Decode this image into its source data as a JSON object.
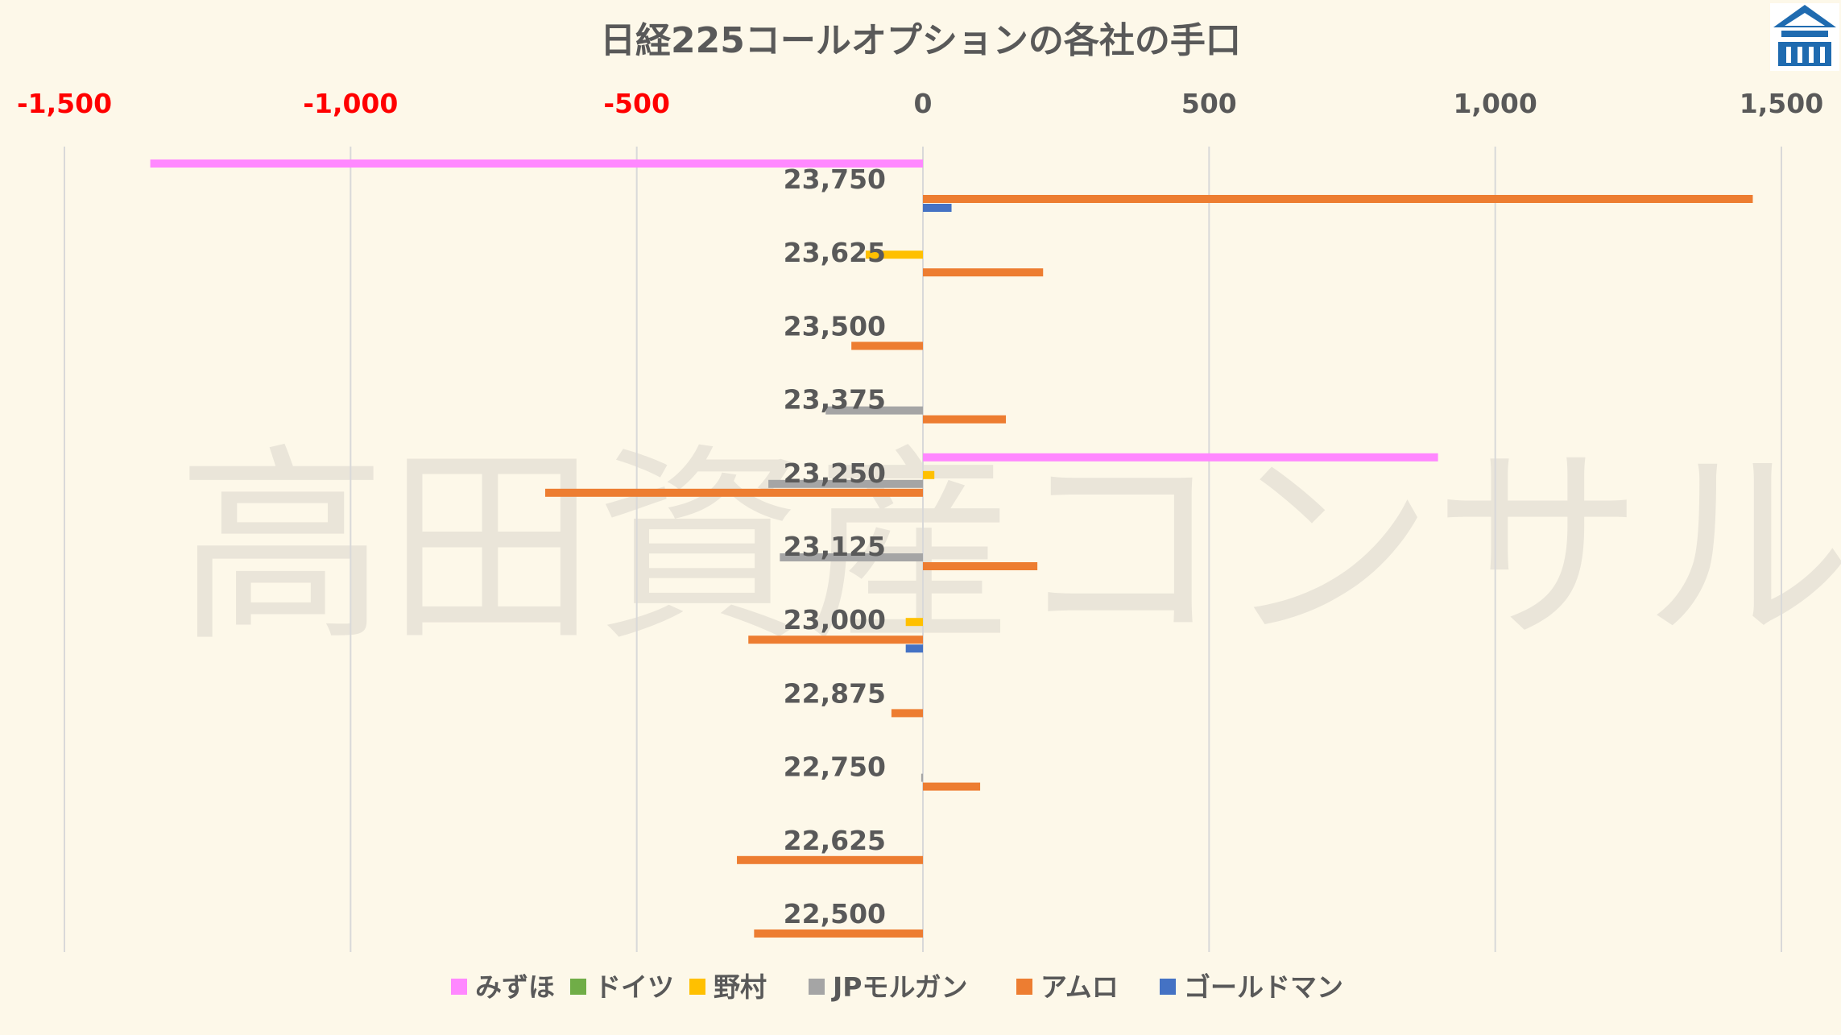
{
  "watermark": "高田資産コンサル",
  "logo": {
    "name": "logo-icon",
    "colors": [
      "#1f6bb0",
      "#ffffff"
    ]
  },
  "colors": {
    "background": "#fdf8e9",
    "gridline": "#d9d9d9",
    "negative_tick": "#ff0000",
    "positive_tick": "#595959",
    "text": "#595959"
  },
  "chart_data": {
    "type": "bar",
    "orientation": "horizontal",
    "title": "日経225コールオプションの各社の手口",
    "xlabel": "",
    "ylabel": "",
    "xlim": [
      -1500,
      1500
    ],
    "x_ticks": [
      -1500,
      -1000,
      -500,
      0,
      500,
      1000,
      1500
    ],
    "x_tick_labels": [
      "-1,500",
      "-1,000",
      "-500",
      "0",
      "500",
      "1,000",
      "1,500"
    ],
    "axis_position": "top",
    "grid": true,
    "legend_position": "bottom",
    "categories": [
      "23,750",
      "23,625",
      "23,500",
      "23,375",
      "23,250",
      "23,125",
      "23,000",
      "22,875",
      "22,750",
      "22,625",
      "22,500"
    ],
    "series": [
      {
        "name": "みずほ",
        "color": "#ff88ff",
        "values": [
          -1350,
          0,
          0,
          0,
          900,
          0,
          0,
          0,
          0,
          0,
          0
        ]
      },
      {
        "name": "ドイツ",
        "color": "#70ad47",
        "values": [
          0,
          0,
          0,
          0,
          0,
          0,
          0,
          0,
          0,
          0,
          0
        ]
      },
      {
        "name": "野村",
        "color": "#ffc000",
        "values": [
          0,
          -100,
          0,
          0,
          20,
          0,
          -30,
          0,
          0,
          0,
          0
        ]
      },
      {
        "name": "JPモルガン",
        "color": "#a5a5a5",
        "values": [
          0,
          0,
          0,
          -170,
          -270,
          -250,
          0,
          0,
          -3,
          0,
          0
        ]
      },
      {
        "name": "アムロ",
        "color": "#ed7d31",
        "values": [
          1450,
          210,
          -125,
          145,
          -660,
          200,
          -305,
          -55,
          100,
          -325,
          -295
        ]
      },
      {
        "name": "ゴールドマン",
        "color": "#4472c4",
        "values": [
          50,
          0,
          0,
          0,
          0,
          0,
          -30,
          0,
          0,
          0,
          0
        ]
      }
    ]
  }
}
